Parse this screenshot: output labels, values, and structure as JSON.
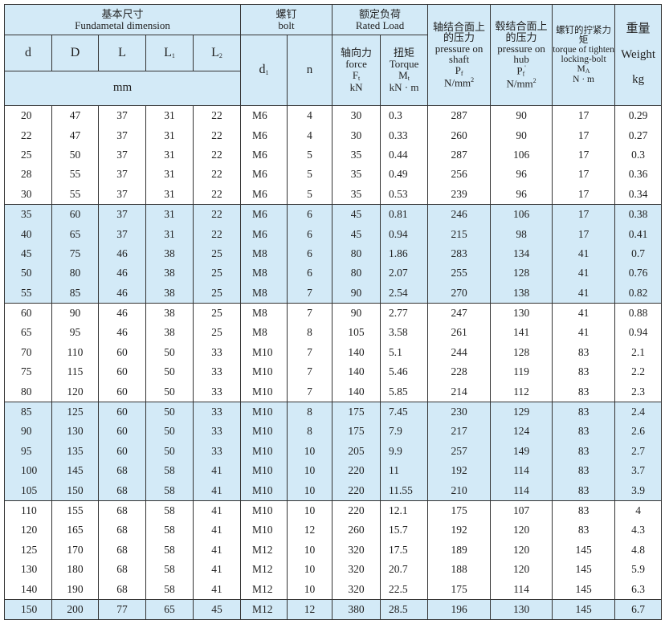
{
  "header": {
    "fundamental_cn": "基本尺寸",
    "fundamental_en": "Fundametal dimension",
    "bolt_cn": "螺钉",
    "bolt_en": "bolt",
    "rated_cn": "额定负荷",
    "rated_en": "Rated Load",
    "shaft_cn": "轴结合面上的压力",
    "shaft_en": "pressure on shaft",
    "shaft_sym": "P",
    "shaft_sub": "f",
    "shaft_unit": "N/mm",
    "hub_cn": "毂结合面上的压力",
    "hub_en": "pressure on hub",
    "hub_sym": "P",
    "hub_sub": "f",
    "hub_prime": "'",
    "hub_unit": "N/mm",
    "sq": "2",
    "torque_bolt_cn": "螺钉的拧紧力矩",
    "torque_bolt_en": "torque of tighten locking-bolt",
    "torque_bolt_sym": "M",
    "torque_bolt_sub": "A",
    "torque_bolt_unit": "N · m",
    "weight_cn": "重量",
    "weight_en": "Weight",
    "weight_unit": "kg",
    "d": "d",
    "D": "D",
    "L": "L",
    "L1": "L",
    "L1_sub": "1",
    "L2": "L",
    "L2_sub": "2",
    "mm": "mm",
    "d1": "d",
    "d1_sub": "1",
    "n": "n",
    "force_cn": "轴向力",
    "force_en": "force",
    "force_sym": "F",
    "force_sub": "t",
    "force_unit": "kN",
    "torque_cn": "扭矩",
    "torque_en": "Torque",
    "torque_sym": "M",
    "torque_sub": "t",
    "torque_unit": "kN · m"
  },
  "colors": {
    "highlight": "#d3eaf7",
    "border": "#333333"
  },
  "rows": [
    [
      "20",
      "47",
      "37",
      "31",
      "22",
      "M6",
      "4",
      "30",
      "0.3",
      "287",
      "90",
      "17",
      "0.29"
    ],
    [
      "22",
      "47",
      "37",
      "31",
      "22",
      "M6",
      "4",
      "30",
      "0.33",
      "260",
      "90",
      "17",
      "0.27"
    ],
    [
      "25",
      "50",
      "37",
      "31",
      "22",
      "M6",
      "5",
      "35",
      "0.44",
      "287",
      "106",
      "17",
      "0.3"
    ],
    [
      "28",
      "55",
      "37",
      "31",
      "22",
      "M6",
      "5",
      "35",
      "0.49",
      "256",
      "96",
      "17",
      "0.36"
    ],
    [
      "30",
      "55",
      "37",
      "31",
      "22",
      "M6",
      "5",
      "35",
      "0.53",
      "239",
      "96",
      "17",
      "0.34"
    ],
    [
      "35",
      "60",
      "37",
      "31",
      "22",
      "M6",
      "6",
      "45",
      "0.81",
      "246",
      "106",
      "17",
      "0.38"
    ],
    [
      "40",
      "65",
      "37",
      "31",
      "22",
      "M6",
      "6",
      "45",
      "0.94",
      "215",
      "98",
      "17",
      "0.41"
    ],
    [
      "45",
      "75",
      "46",
      "38",
      "25",
      "M8",
      "6",
      "80",
      "1.86",
      "283",
      "134",
      "41",
      "0.7"
    ],
    [
      "50",
      "80",
      "46",
      "38",
      "25",
      "M8",
      "6",
      "80",
      "2.07",
      "255",
      "128",
      "41",
      "0.76"
    ],
    [
      "55",
      "85",
      "46",
      "38",
      "25",
      "M8",
      "7",
      "90",
      "2.54",
      "270",
      "138",
      "41",
      "0.82"
    ],
    [
      "60",
      "90",
      "46",
      "38",
      "25",
      "M8",
      "7",
      "90",
      "2.77",
      "247",
      "130",
      "41",
      "0.88"
    ],
    [
      "65",
      "95",
      "46",
      "38",
      "25",
      "M8",
      "8",
      "105",
      "3.58",
      "261",
      "141",
      "41",
      "0.94"
    ],
    [
      "70",
      "110",
      "60",
      "50",
      "33",
      "M10",
      "7",
      "140",
      "5.1",
      "244",
      "128",
      "83",
      "2.1"
    ],
    [
      "75",
      "115",
      "60",
      "50",
      "33",
      "M10",
      "7",
      "140",
      "5.46",
      "228",
      "119",
      "83",
      "2.2"
    ],
    [
      "80",
      "120",
      "60",
      "50",
      "33",
      "M10",
      "7",
      "140",
      "5.85",
      "214",
      "112",
      "83",
      "2.3"
    ],
    [
      "85",
      "125",
      "60",
      "50",
      "33",
      "M10",
      "8",
      "175",
      "7.45",
      "230",
      "129",
      "83",
      "2.4"
    ],
    [
      "90",
      "130",
      "60",
      "50",
      "33",
      "M10",
      "8",
      "175",
      "7.9",
      "217",
      "124",
      "83",
      "2.6"
    ],
    [
      "95",
      "135",
      "60",
      "50",
      "33",
      "M10",
      "10",
      "205",
      "9.9",
      "257",
      "149",
      "83",
      "2.7"
    ],
    [
      "100",
      "145",
      "68",
      "58",
      "41",
      "M10",
      "10",
      "220",
      "11",
      "192",
      "114",
      "83",
      "3.7"
    ],
    [
      "105",
      "150",
      "68",
      "58",
      "41",
      "M10",
      "10",
      "220",
      "11.55",
      "210",
      "114",
      "83",
      "3.9"
    ],
    [
      "110",
      "155",
      "68",
      "58",
      "41",
      "M10",
      "10",
      "220",
      "12.1",
      "175",
      "107",
      "83",
      "4"
    ],
    [
      "120",
      "165",
      "68",
      "58",
      "41",
      "M10",
      "12",
      "260",
      "15.7",
      "192",
      "120",
      "83",
      "4.3"
    ],
    [
      "125",
      "170",
      "68",
      "58",
      "41",
      "M12",
      "10",
      "320",
      "17.5",
      "189",
      "120",
      "145",
      "4.8"
    ],
    [
      "130",
      "180",
      "68",
      "58",
      "41",
      "M12",
      "10",
      "320",
      "20.7",
      "188",
      "120",
      "145",
      "5.9"
    ],
    [
      "140",
      "190",
      "68",
      "58",
      "41",
      "M12",
      "10",
      "320",
      "22.5",
      "175",
      "114",
      "145",
      "6.3"
    ],
    [
      "150",
      "200",
      "77",
      "65",
      "45",
      "M12",
      "12",
      "380",
      "28.5",
      "196",
      "130",
      "145",
      "6.7"
    ]
  ]
}
